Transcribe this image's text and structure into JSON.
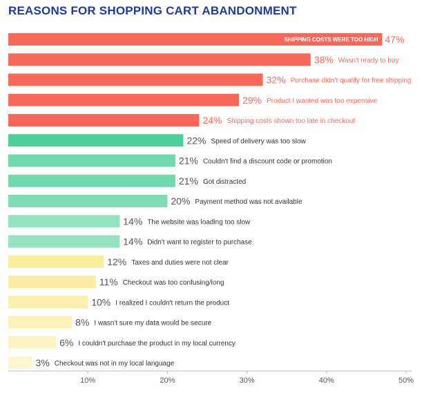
{
  "chart_data": {
    "type": "bar",
    "orientation": "horizontal",
    "title": "REASONS FOR SHOPPING CART ABANDONMENT",
    "xlim": [
      0,
      50
    ],
    "x_ticks": [
      "10%",
      "20%",
      "30%",
      "40%",
      "50%"
    ],
    "tick_values": [
      10,
      20,
      30,
      40,
      50
    ],
    "categories": [
      "SHIPPING COSTS WERE TOO HIGH",
      "Wasn't ready to buy",
      "Purchase didn't qualify for free shipping",
      "Product I wanted was too expensive",
      "Shipping costs shown too late in checkout",
      "Speed of delivery was too slow",
      "Couldn't find a discount code or promotion",
      "Got distracted",
      "Payment method was not available",
      "The website was loading too slow",
      "Didn't want to register to purchase",
      "Taxes and duties were not clear",
      "Checkout was too confusing/long",
      "I realized I couldn't return the product",
      "I wasn't sure my data would be secure",
      "I couldn't purchase the product in my local currency",
      "Checkout was not in my local language"
    ],
    "values": [
      47,
      38,
      32,
      29,
      24,
      22,
      21,
      21,
      20,
      14,
      14,
      12,
      11,
      10,
      8,
      6,
      3
    ],
    "value_labels": [
      "47%",
      "38%",
      "32%",
      "29%",
      "24%",
      "22%",
      "21%",
      "21%",
      "20%",
      "14%",
      "14%",
      "12%",
      "11%",
      "10%",
      "8%",
      "6%",
      "3%"
    ],
    "bar_colors": [
      "#f8685a",
      "#f8685a",
      "#f8685a",
      "#f8685a",
      "#f8685a",
      "#4ecf9a",
      "#72d9ad",
      "#72d9ad",
      "#7fdcb4",
      "#95e2c3",
      "#95e2c3",
      "#f9ec9a",
      "#f9eda4",
      "#faefac",
      "#faf1b7",
      "#fbf3c2",
      "#fcf5cf"
    ],
    "label_colors": [
      "#ffffff",
      "#f8685a",
      "#f8685a",
      "#f8685a",
      "#f8685a",
      "#333333",
      "#333333",
      "#333333",
      "#333333",
      "#333333",
      "#333333",
      "#333333",
      "#333333",
      "#333333",
      "#333333",
      "#333333",
      "#333333"
    ],
    "value_colors": [
      "#f8685a",
      "#f8685a",
      "#f8685a",
      "#f8685a",
      "#f8685a",
      "#555555",
      "#555555",
      "#555555",
      "#555555",
      "#555555",
      "#555555",
      "#555555",
      "#555555",
      "#555555",
      "#555555",
      "#555555",
      "#555555"
    ],
    "first_label_inside": true
  }
}
